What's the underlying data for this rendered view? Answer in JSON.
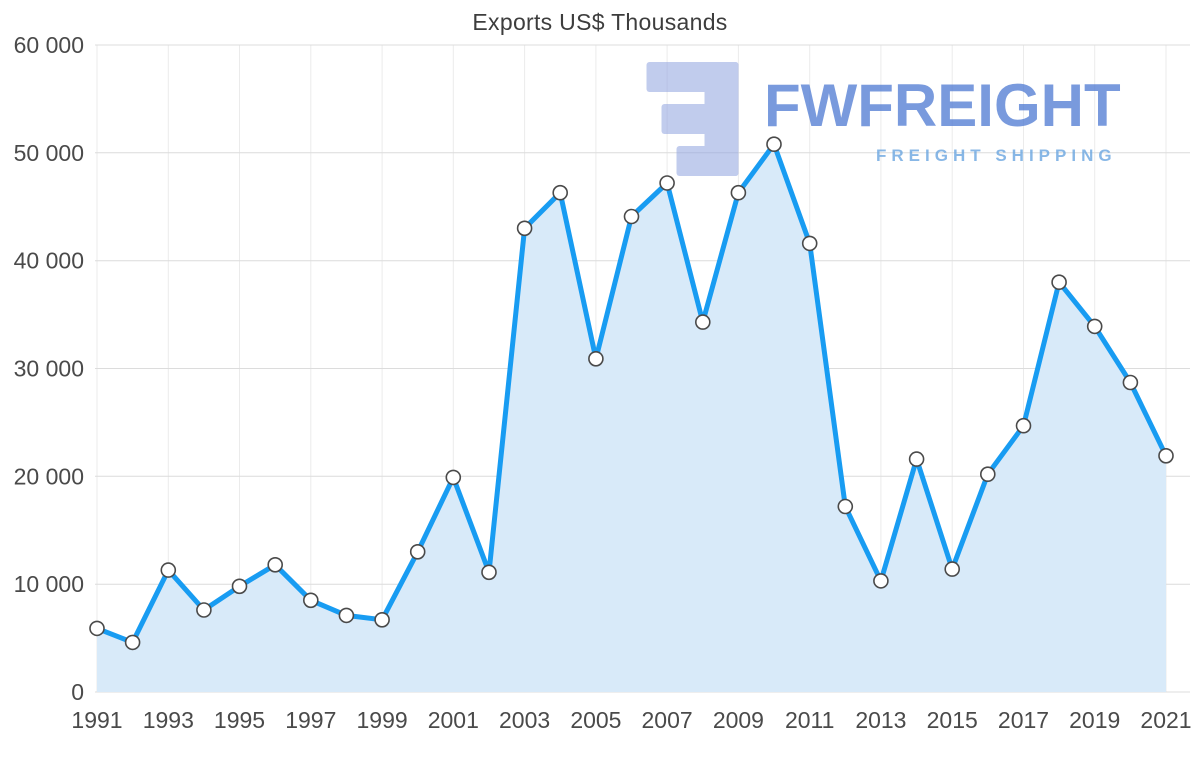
{
  "chart_data": {
    "type": "area",
    "title": "Exports US$ Thousands",
    "x": [
      1991,
      1992,
      1993,
      1994,
      1995,
      1996,
      1997,
      1998,
      1999,
      2000,
      2001,
      2002,
      2003,
      2004,
      2005,
      2006,
      2007,
      2008,
      2009,
      2010,
      2011,
      2012,
      2013,
      2014,
      2015,
      2016,
      2017,
      2018,
      2019,
      2020,
      2021
    ],
    "values": [
      5900,
      4600,
      11300,
      7600,
      9800,
      11800,
      8500,
      7100,
      6700,
      13000,
      19900,
      11100,
      43000,
      46300,
      30900,
      44100,
      47200,
      34300,
      46300,
      50800,
      41600,
      17200,
      10300,
      21600,
      11400,
      20200,
      24700,
      38000,
      33900,
      28700,
      21900
    ],
    "ylim": [
      0,
      60000
    ],
    "yticks": [
      0,
      10000,
      20000,
      30000,
      40000,
      50000,
      60000
    ],
    "ytick_labels": [
      "0",
      "10 000",
      "20 000",
      "30 000",
      "40 000",
      "50 000",
      "60 000"
    ],
    "xtick_every": 2,
    "xtick_labels": [
      "1991",
      "1993",
      "1995",
      "1997",
      "1999",
      "2001",
      "2003",
      "2005",
      "2007",
      "2009",
      "2011",
      "2013",
      "2015",
      "2017",
      "2019",
      "2021"
    ],
    "grid": true,
    "legend_position": "none",
    "xlabel": "",
    "ylabel": "",
    "colors": {
      "line": "#189cf2",
      "area_fill": "#d8eaf9",
      "marker_fill": "#ffffff",
      "marker_stroke": "#4a4a4a",
      "grid_horizontal": "#dcdcdc",
      "grid_vertical": "#ebebeb",
      "axis_text": "#4a4a4a",
      "title_text": "#3d3d3d"
    }
  },
  "watermark": {
    "brand": "FWFREIGHT",
    "tagline": "FREIGHT SHIPPING",
    "colors": {
      "icon": "#8fa3e0",
      "brand_text": "#4d79d2",
      "tagline_text": "#6ba6e0"
    }
  }
}
